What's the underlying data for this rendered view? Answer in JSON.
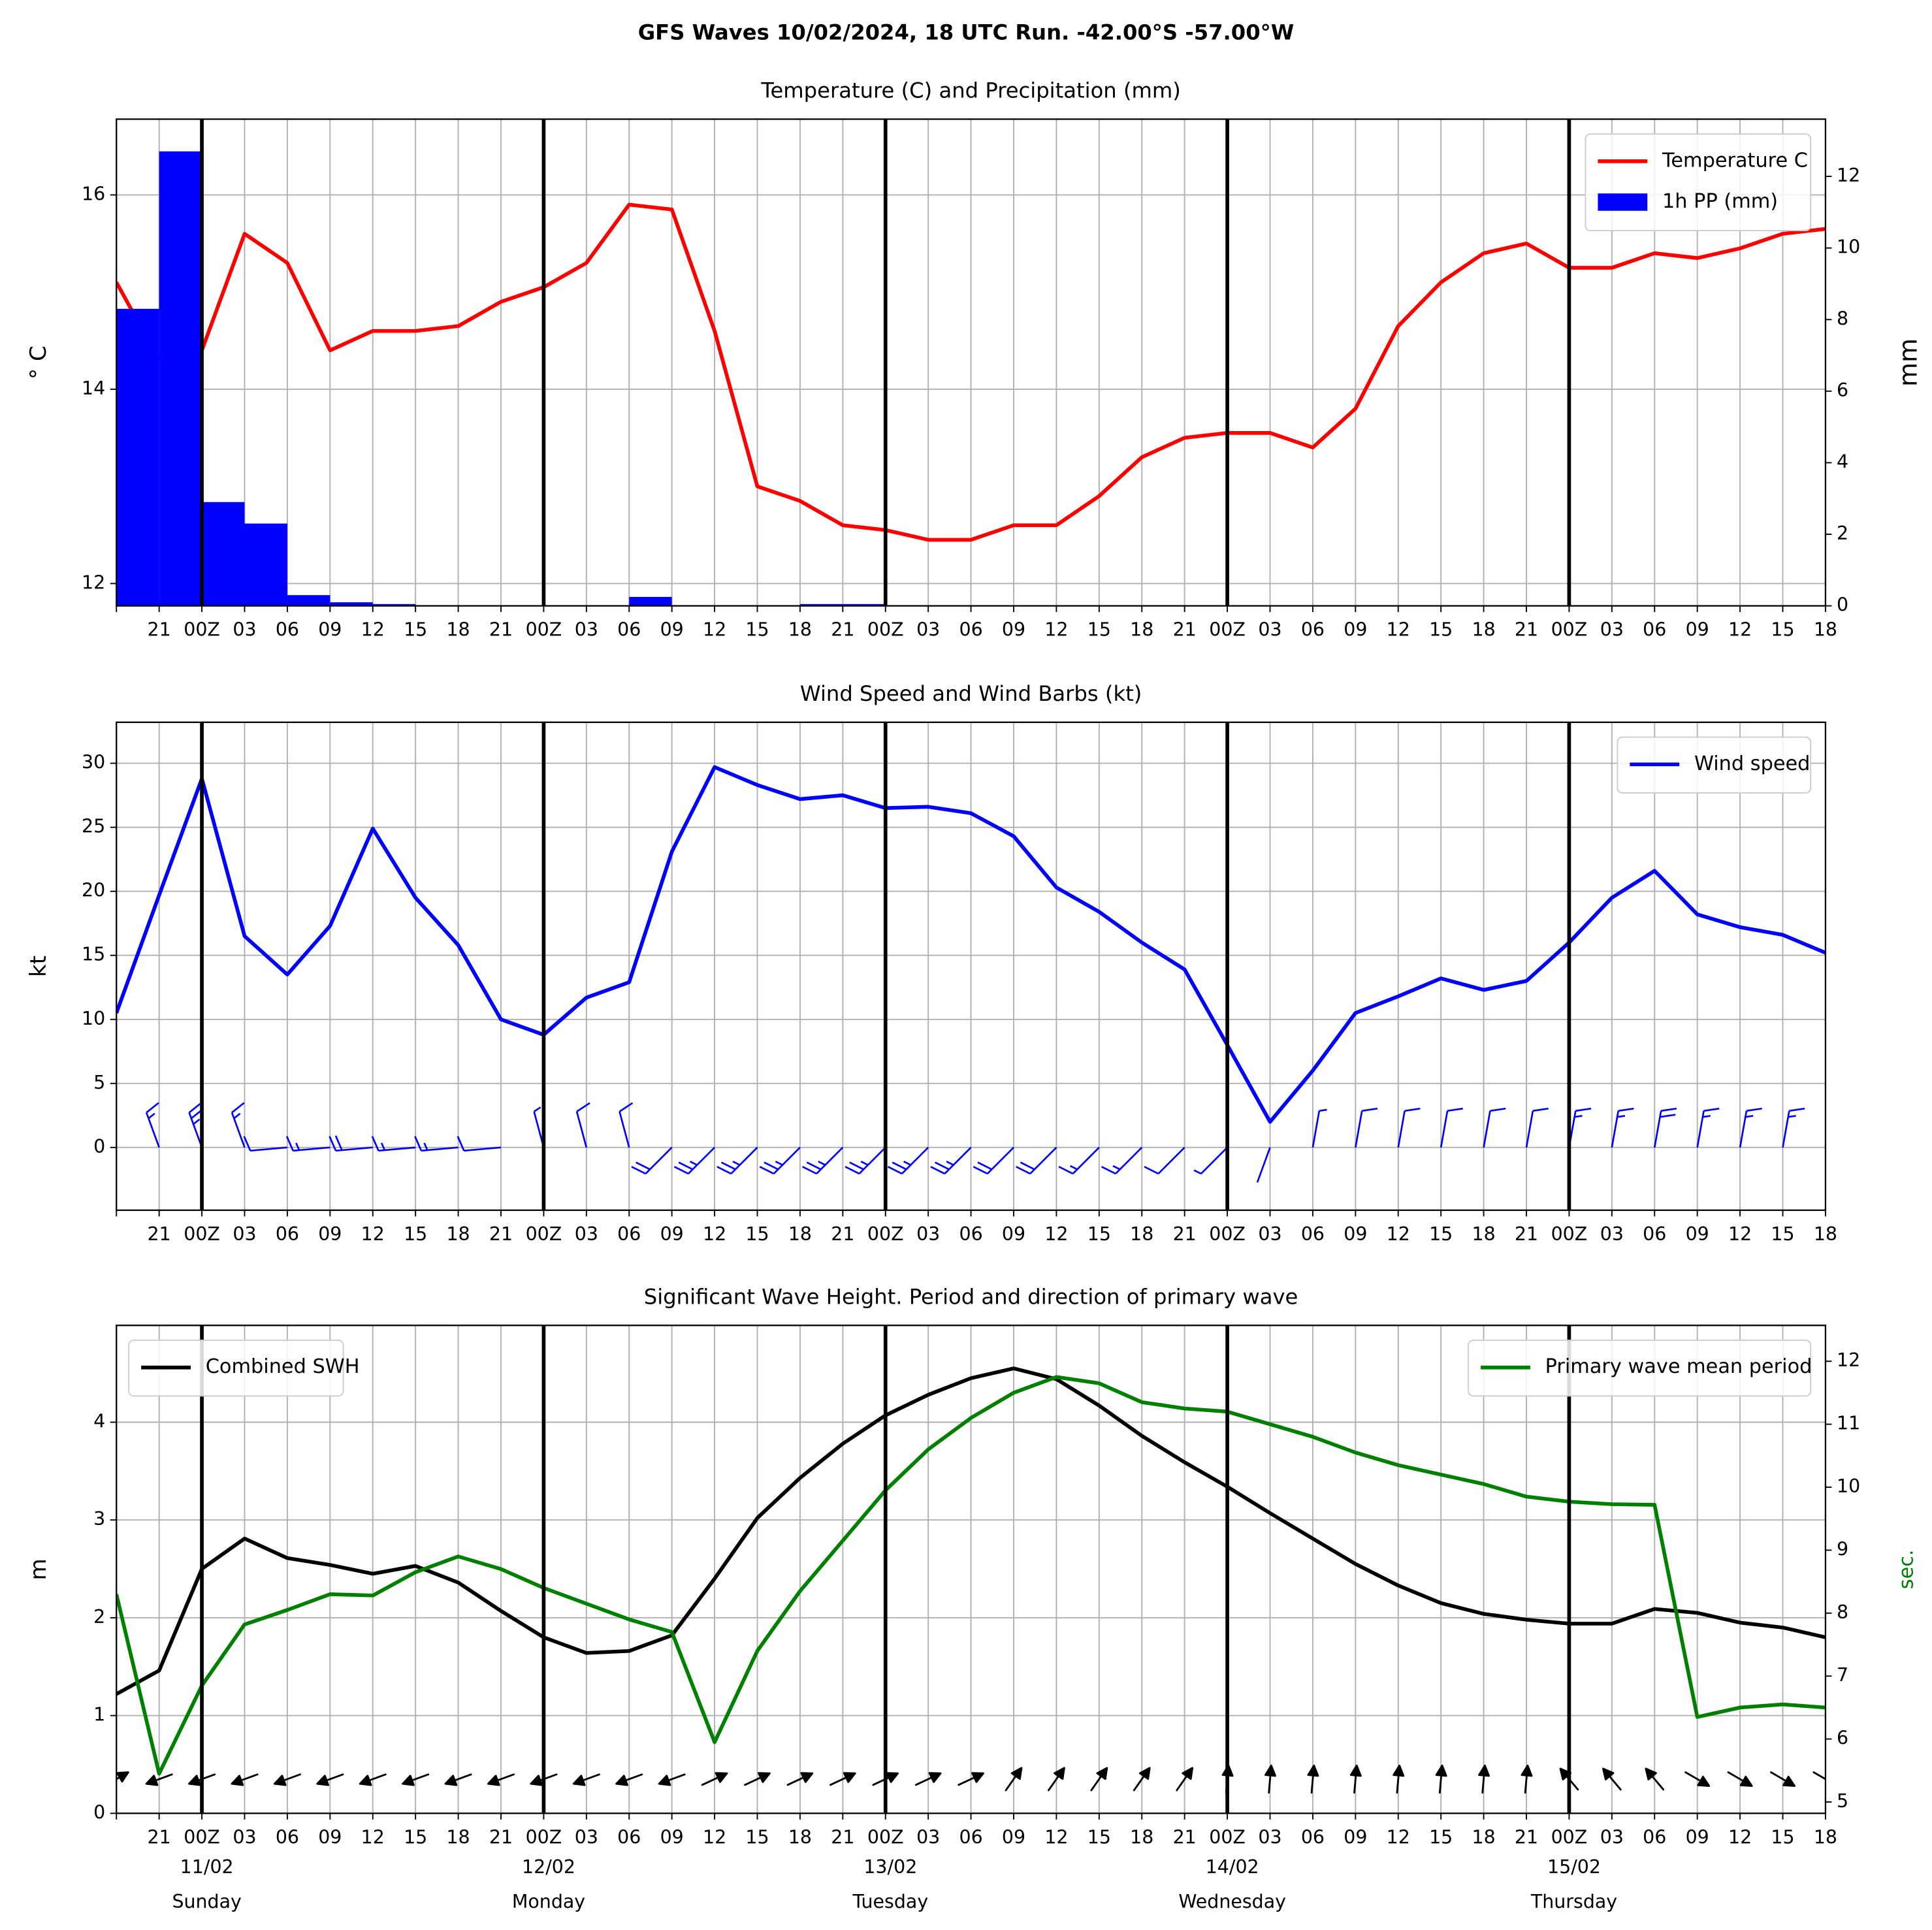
{
  "title": "GFS Waves 10/02/2024, 18 UTC Run. -42.00°S -57.00°W",
  "chart_data": [
    {
      "type": "line",
      "title": "Temperature (C) and Precipitation (mm)",
      "y_label": "° C",
      "y2_label": "mm",
      "categories": [
        null,
        "21",
        "00Z",
        "03",
        "06",
        "09",
        "12",
        "15",
        "18",
        "21",
        "00Z",
        "03",
        "06",
        "09",
        "12",
        "15",
        "18",
        "21",
        "00Z",
        "03",
        "06",
        "09",
        "12",
        "15",
        "18",
        "21",
        "00Z",
        "03",
        "06",
        "09",
        "12",
        "15",
        "18",
        "21",
        "00Z",
        "03",
        "06",
        "09",
        "12",
        "15",
        "18"
      ],
      "series": [
        {
          "name": "Temperature C",
          "color": "#ff0000",
          "values": [
            15.1,
            14.3,
            14.4,
            15.6,
            15.3,
            14.4,
            14.6,
            14.6,
            14.65,
            14.9,
            15.05,
            15.3,
            15.9,
            15.85,
            14.6,
            13.0,
            12.85,
            12.6,
            12.55,
            12.45,
            12.45,
            12.6,
            12.6,
            12.9,
            13.3,
            13.5,
            13.55,
            13.55,
            13.4,
            13.8,
            14.65,
            15.1,
            15.4,
            15.5,
            15.25,
            15.25,
            15.4,
            15.35,
            15.45,
            15.6,
            15.65
          ]
        },
        {
          "name": "1h PP (mm)",
          "color": "#0000ff",
          "type": "bar",
          "axis": "y2",
          "values": [
            8.3,
            12.7,
            2.9,
            2.3,
            0.3,
            0.1,
            0.05,
            0,
            0,
            0,
            0,
            0,
            0.25,
            0,
            0,
            0,
            0.05,
            0.05,
            0,
            0,
            0,
            0,
            0,
            0,
            0,
            0,
            0,
            0,
            0,
            0,
            0,
            0,
            0,
            0,
            0,
            0,
            0,
            0,
            0,
            0,
            0
          ]
        }
      ],
      "ylim": [
        11.77,
        16.78
      ],
      "yticks": [
        12,
        14,
        16
      ],
      "y2lim": [
        0,
        13.6
      ],
      "y2ticks": [
        0,
        2,
        4,
        6,
        8,
        10,
        12
      ],
      "grid": true,
      "legend": "upper right"
    },
    {
      "type": "line",
      "title": "Wind Speed and Wind Barbs (kt)",
      "y_label": "kt",
      "categories": [
        null,
        "21",
        "00Z",
        "03",
        "06",
        "09",
        "12",
        "15",
        "18",
        "21",
        "00Z",
        "03",
        "06",
        "09",
        "12",
        "15",
        "18",
        "21",
        "00Z",
        "03",
        "06",
        "09",
        "12",
        "15",
        "18",
        "21",
        "00Z",
        "03",
        "06",
        "09",
        "12",
        "15",
        "18",
        "21",
        "00Z",
        "03",
        "06",
        "09",
        "12",
        "15",
        "18"
      ],
      "series": [
        {
          "name": "Wind speed",
          "color": "#0000ff",
          "values": [
            10.5,
            19.7,
            28.8,
            16.5,
            13.5,
            17.3,
            24.9,
            19.5,
            15.8,
            10.0,
            8.8,
            11.7,
            12.9,
            23.1,
            29.7,
            28.3,
            27.2,
            27.5,
            26.5,
            26.6,
            26.1,
            24.3,
            20.3,
            18.4,
            16.0,
            13.9,
            8.0,
            2.0,
            6.0,
            10.5,
            11.8,
            13.2,
            12.3,
            13.0,
            16.0,
            19.5,
            21.6,
            18.2,
            17.2,
            16.6,
            15.2
          ]
        }
      ],
      "barb_directions": [
        340,
        340,
        340,
        340,
        265,
        265,
        265,
        265,
        265,
        265,
        345,
        345,
        345,
        225,
        225,
        225,
        225,
        225,
        225,
        225,
        225,
        225,
        225,
        225,
        225,
        225,
        225,
        200,
        10,
        10,
        10,
        10,
        10,
        10,
        10,
        10,
        10,
        10,
        10,
        10,
        10
      ],
      "ylim": [
        -4.9,
        33.2
      ],
      "yticks": [
        0,
        5,
        10,
        15,
        20,
        25,
        30
      ],
      "grid": true,
      "legend": "upper right"
    },
    {
      "type": "line",
      "title": "Significant Wave Height. Period and direction of primary wave",
      "y_label": "m",
      "y2_label": "sec.",
      "y2_color": "#008000",
      "categories": [
        null,
        "21",
        "00Z",
        "03",
        "06",
        "09",
        "12",
        "15",
        "18",
        "21",
        "00Z",
        "03",
        "06",
        "09",
        "12",
        "15",
        "18",
        "21",
        "00Z",
        "03",
        "06",
        "09",
        "12",
        "15",
        "18",
        "21",
        "00Z",
        "03",
        "06",
        "09",
        "12",
        "15",
        "18",
        "21",
        "00Z",
        "03",
        "06",
        "09",
        "12",
        "15",
        "18"
      ],
      "day_labels": [
        {
          "date": "11/02",
          "day": "Sunday"
        },
        {
          "date": "12/02",
          "day": "Monday"
        },
        {
          "date": "13/02",
          "day": "Tuesday"
        },
        {
          "date": "14/02",
          "day": "Wednesday"
        },
        {
          "date": "15/02",
          "day": "Thursday"
        }
      ],
      "series": [
        {
          "name": "Combined SWH",
          "color": "#000000",
          "legend": "upper left",
          "values": [
            1.22,
            1.46,
            2.5,
            2.81,
            2.61,
            2.54,
            2.45,
            2.53,
            2.36,
            2.07,
            1.8,
            1.64,
            1.66,
            1.82,
            2.4,
            3.02,
            3.43,
            3.78,
            4.07,
            4.28,
            4.45,
            4.55,
            4.44,
            4.17,
            3.86,
            3.59,
            3.34,
            3.07,
            2.81,
            2.55,
            2.33,
            2.15,
            2.04,
            1.98,
            1.94,
            1.94,
            2.09,
            2.05,
            1.95,
            1.9,
            1.8
          ]
        },
        {
          "name": "Primary wave mean period",
          "color": "#008000",
          "axis": "y2",
          "legend": "upper right",
          "values": [
            8.3,
            5.45,
            6.85,
            7.82,
            8.05,
            8.3,
            8.28,
            8.65,
            8.9,
            8.7,
            8.4,
            8.15,
            7.9,
            7.7,
            5.95,
            7.4,
            8.35,
            9.15,
            9.95,
            10.6,
            11.1,
            11.5,
            11.75,
            11.65,
            11.35,
            11.25,
            11.2,
            11.0,
            10.8,
            10.55,
            10.35,
            10.2,
            10.05,
            9.85,
            9.77,
            9.73,
            9.72,
            6.35,
            6.5,
            6.55,
            6.5
          ]
        }
      ],
      "arrow_directions": [
        240,
        70,
        70,
        70,
        70,
        70,
        70,
        70,
        70,
        70,
        70,
        70,
        70,
        70,
        245,
        245,
        245,
        245,
        245,
        245,
        245,
        215,
        215,
        215,
        215,
        215,
        185,
        185,
        185,
        185,
        185,
        185,
        185,
        185,
        140,
        140,
        140,
        300,
        300,
        300,
        300
      ],
      "ylim": [
        0,
        4.99
      ],
      "yticks": [
        0,
        1,
        2,
        3,
        4
      ],
      "y2lim": [
        4.82,
        12.57
      ],
      "y2ticks": [
        5,
        6,
        7,
        8,
        9,
        10,
        11,
        12
      ],
      "grid": true
    }
  ]
}
